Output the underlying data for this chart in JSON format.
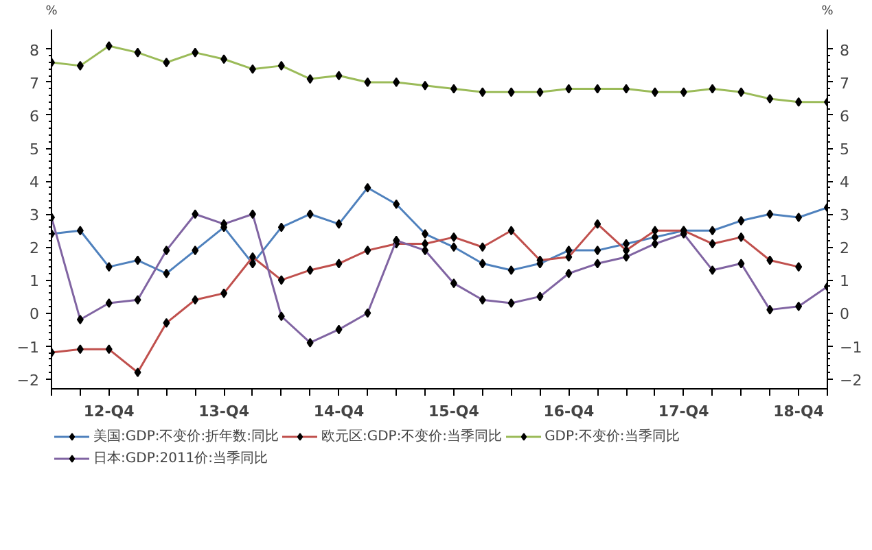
{
  "chart_data": {
    "type": "line",
    "categories": [
      null,
      null,
      "12-Q4",
      null,
      null,
      null,
      "13-Q4",
      null,
      null,
      null,
      "14-Q4",
      null,
      null,
      null,
      "15-Q4",
      null,
      null,
      null,
      "16-Q4",
      null,
      null,
      null,
      "17-Q4",
      null,
      null,
      null,
      "18-Q4",
      null
    ],
    "series": [
      {
        "name": "美国:GDP:不变价:折年数:同比",
        "color": "#4f81bd",
        "values": [
          2.4,
          2.5,
          1.4,
          1.6,
          1.2,
          1.9,
          2.6,
          1.5,
          2.6,
          3.0,
          2.7,
          3.8,
          3.3,
          2.4,
          2.0,
          1.5,
          1.3,
          1.5,
          1.9,
          1.9,
          2.1,
          2.3,
          2.5,
          2.5,
          2.8,
          3.0,
          2.9,
          3.2
        ]
      },
      {
        "name": "欧元区:GDP:不变价:当季同比",
        "color": "#c0504d",
        "values": [
          -1.2,
          -1.1,
          -1.1,
          -1.8,
          -0.3,
          0.4,
          0.6,
          1.7,
          1.0,
          1.3,
          1.5,
          1.9,
          2.1,
          2.1,
          2.3,
          2.0,
          2.5,
          1.6,
          1.7,
          2.7,
          1.9,
          2.5,
          2.5,
          2.1,
          2.3,
          1.6,
          1.4,
          null
        ]
      },
      {
        "name": "GDP:不变价:当季同比",
        "color": "#9bbb59",
        "values": [
          7.6,
          7.5,
          8.1,
          7.9,
          7.6,
          7.9,
          7.7,
          7.4,
          7.5,
          7.1,
          7.2,
          7.0,
          7.0,
          6.9,
          6.8,
          6.7,
          6.7,
          6.7,
          6.8,
          6.8,
          6.8,
          6.7,
          6.7,
          6.8,
          6.7,
          6.5,
          6.4,
          6.4
        ]
      },
      {
        "name": "日本:GDP:2011价:当季同比",
        "color": "#8064a2",
        "values": [
          2.9,
          -0.2,
          0.3,
          0.4,
          1.9,
          3.0,
          2.7,
          3.0,
          -0.1,
          -0.9,
          -0.5,
          0.0,
          2.2,
          1.9,
          0.9,
          0.4,
          0.3,
          0.5,
          1.2,
          1.5,
          1.7,
          2.1,
          2.4,
          1.3,
          1.5,
          0.1,
          0.2,
          0.8
        ]
      }
    ],
    "ylabel": "%",
    "y2label": "%",
    "ylim": [
      -2.3,
      8.6
    ],
    "yticks": [
      -2,
      -1,
      0,
      1,
      2,
      3,
      4,
      5,
      6,
      7,
      8
    ],
    "y2lim": [
      -2.3,
      8.6
    ],
    "y2ticks": [
      -2,
      -1,
      0,
      1,
      2,
      3,
      4,
      5,
      6,
      7,
      8
    ],
    "marker": "diamond",
    "line_style": "solid",
    "grid": false,
    "legend": "bottom"
  }
}
